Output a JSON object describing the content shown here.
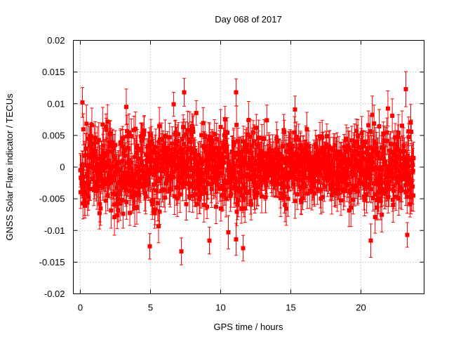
{
  "chart_data": {
    "type": "scatter",
    "title": "Day 068 of 2017",
    "xlabel": "GPS time / hours",
    "ylabel": "GNSS Solar Flare indicator / TECUs",
    "xlim": [
      -0.5,
      24.5
    ],
    "ylim": [
      -0.02,
      0.02
    ],
    "x_ticks": [
      0,
      5,
      10,
      15,
      20
    ],
    "y_ticks": [
      -0.02,
      -0.015,
      -0.01,
      -0.005,
      0,
      0.005,
      0.01,
      0.015,
      0.02
    ],
    "x_tick_labels": [
      "0",
      "5",
      "10",
      "15",
      "20"
    ],
    "y_tick_labels": [
      "-0.02",
      "-0.015",
      "-0.01",
      "-0.005",
      "0",
      "0.005",
      "0.01",
      "0.015",
      "0.02"
    ],
    "grid": true,
    "legend": "none",
    "marker": "filled-square",
    "error_bars": true,
    "color": "#ff0000",
    "time_range_hours": [
      0,
      23.75
    ],
    "typical_spread": 0.006,
    "extremes": [
      {
        "x": 0.15,
        "y": 0.0102
      },
      {
        "x": 4.95,
        "y": -0.0125
      },
      {
        "x": 7.2,
        "y": -0.0133
      },
      {
        "x": 7.4,
        "y": 0.0118
      },
      {
        "x": 9.2,
        "y": -0.0116
      },
      {
        "x": 11.1,
        "y": 0.0118
      },
      {
        "x": 11.1,
        "y": -0.0114
      },
      {
        "x": 11.6,
        "y": -0.0128
      },
      {
        "x": 15.3,
        "y": 0.0091
      },
      {
        "x": 20.7,
        "y": -0.0116
      },
      {
        "x": 23.2,
        "y": 0.0123
      },
      {
        "x": 23.3,
        "y": -0.0107
      }
    ]
  }
}
